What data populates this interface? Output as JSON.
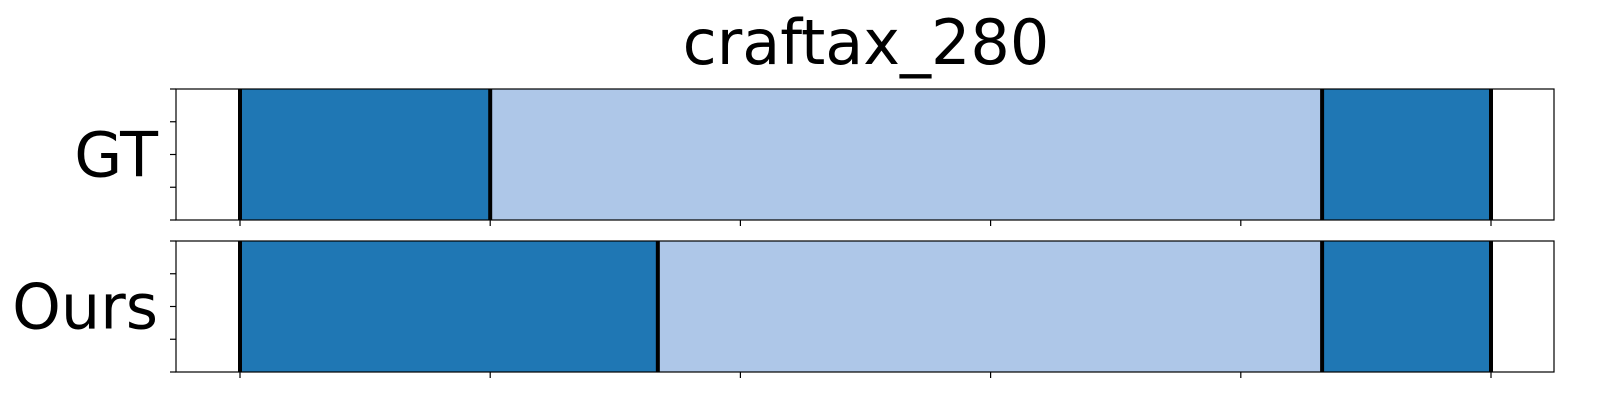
{
  "chart_data": {
    "type": "segment-timeline",
    "title": "craftax_280",
    "xlim": [
      0,
      100
    ],
    "xticks": [
      5,
      25,
      45,
      65,
      85,
      105
    ],
    "colors": {
      "dark": "#1f77b4",
      "light": "#aec7e8",
      "boundary": "#000000"
    },
    "rows": [
      {
        "label": "GT",
        "segments": [
          {
            "start": 5,
            "end": 25,
            "color": "dark"
          },
          {
            "start": 25,
            "end": 91.5,
            "color": "light"
          },
          {
            "start": 91.5,
            "end": 105,
            "color": "dark"
          }
        ]
      },
      {
        "label": "Ours",
        "segments": [
          {
            "start": 5,
            "end": 38.4,
            "color": "dark"
          },
          {
            "start": 38.4,
            "end": 91.5,
            "color": "light"
          },
          {
            "start": 91.5,
            "end": 105,
            "color": "dark"
          }
        ]
      }
    ]
  }
}
